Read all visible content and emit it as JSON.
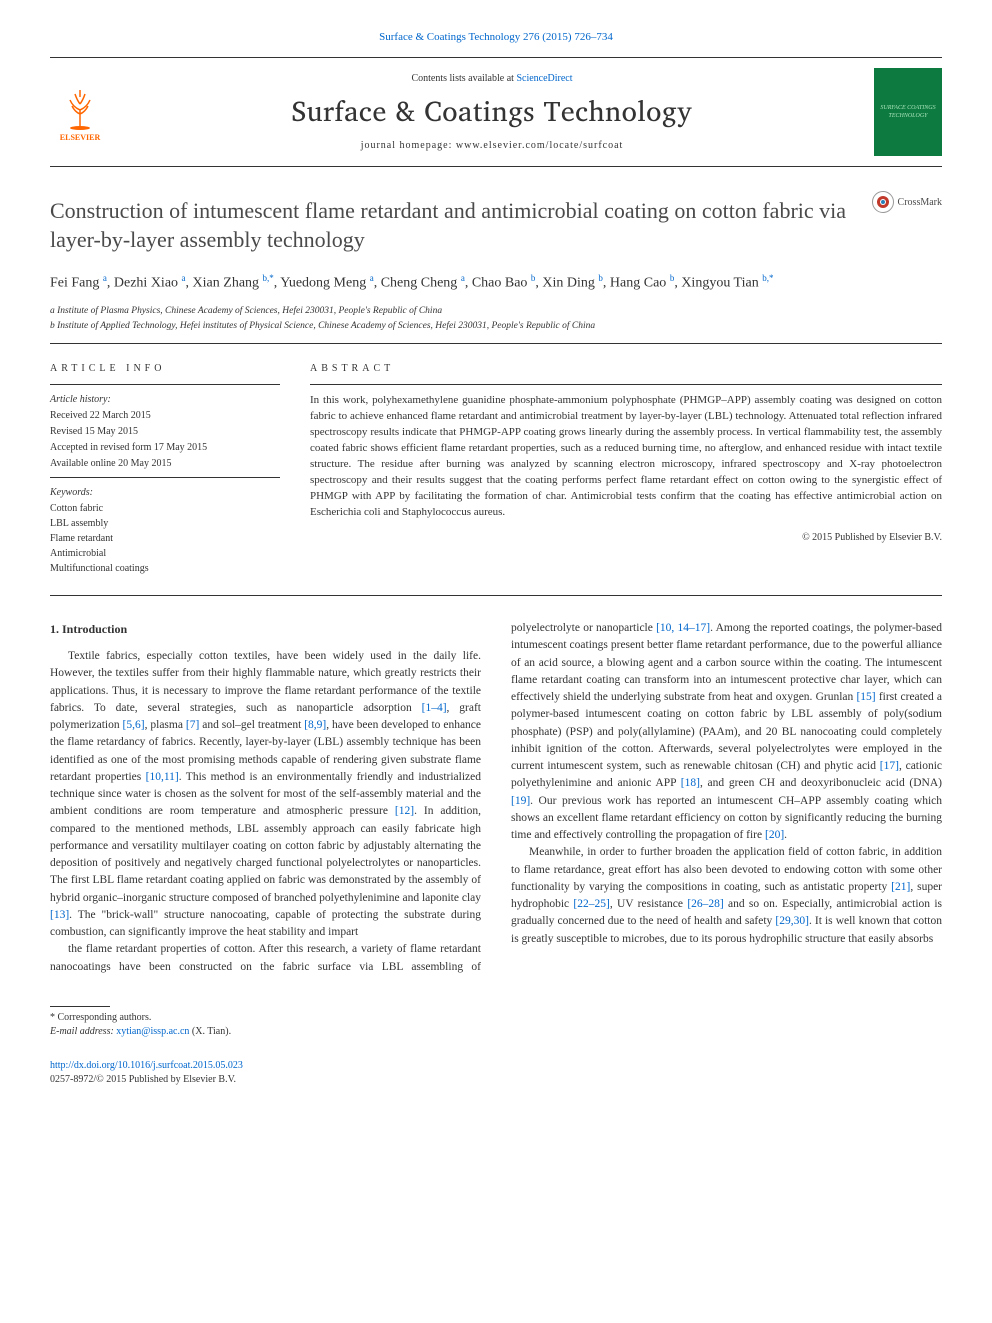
{
  "journal": {
    "top_link_text": "Surface & Coatings Technology 276 (2015) 726–734",
    "contents_line_prefix": "Contents lists available at ",
    "contents_line_link": "ScienceDirect",
    "name": "Surface & Coatings Technology",
    "homepage_prefix": "journal homepage: ",
    "homepage_url": "www.elsevier.com/locate/surfcoat",
    "publisher_label": "ELSEVIER",
    "cover_label": "SURFACE COATINGS TECHNOLOGY"
  },
  "crossmark_label": "CrossMark",
  "article": {
    "title": "Construction of intumescent flame retardant and antimicrobial coating on cotton fabric via layer-by-layer assembly technology",
    "authors_html": "Fei Fang <sup>a</sup>, Dezhi Xiao <sup>a</sup>, Xian Zhang <sup>b,*</sup>, Yuedong Meng <sup>a</sup>, Cheng Cheng <sup>a</sup>, Chao Bao <sup>b</sup>, Xin Ding <sup>b</sup>, Hang Cao <sup>b</sup>, Xingyou Tian <sup>b,*</sup>",
    "affiliations": [
      "a Institute of Plasma Physics, Chinese Academy of Sciences, Hefei 230031, People's Republic of China",
      "b Institute of Applied Technology, Hefei institutes of Physical Science, Chinese Academy of Sciences, Hefei 230031, People's Republic of China"
    ]
  },
  "article_info": {
    "heading": "ARTICLE INFO",
    "history_label": "Article history:",
    "history": [
      "Received 22 March 2015",
      "Revised 15 May 2015",
      "Accepted in revised form 17 May 2015",
      "Available online 20 May 2015"
    ],
    "keywords_label": "Keywords:",
    "keywords": [
      "Cotton fabric",
      "LBL assembly",
      "Flame retardant",
      "Antimicrobial",
      "Multifunctional coatings"
    ]
  },
  "abstract": {
    "heading": "ABSTRACT",
    "text": "In this work, polyhexamethylene guanidine phosphate-ammonium polyphosphate (PHMGP–APP) assembly coating was designed on cotton fabric to achieve enhanced flame retardant and antimicrobial treatment by layer-by-layer (LBL) technology. Attenuated total reflection infrared spectroscopy results indicate that PHMGP-APP coating grows linearly during the assembly process. In vertical flammability test, the assembly coated fabric shows efficient flame retardant properties, such as a reduced burning time, no afterglow, and enhanced residue with intact textile structure. The residue after burning was analyzed by scanning electron microscopy, infrared spectroscopy and X-ray photoelectron spectroscopy and their results suggest that the coating performs perfect flame retardant effect on cotton owing to the synergistic effect of PHMGP with APP by facilitating the formation of char. Antimicrobial tests confirm that the coating has effective antimicrobial action on Escherichia coli and Staphylococcus aureus.",
    "copyright": "© 2015 Published by Elsevier B.V."
  },
  "body": {
    "section_heading": "1. Introduction",
    "p1": "Textile fabrics, especially cotton textiles, have been widely used in the daily life. However, the textiles suffer from their highly flammable nature, which greatly restricts their applications. Thus, it is necessary to improve the flame retardant performance of the textile fabrics. To date, several strategies, such as nanoparticle adsorption [1–4], graft polymerization [5,6], plasma [7] and sol–gel treatment [8,9], have been developed to enhance the flame retardancy of fabrics. Recently, layer-by-layer (LBL) assembly technique has been identified as one of the most promising methods capable of rendering given substrate flame retardant properties [10,11]. This method is an environmentally friendly and industrialized technique since water is chosen as the solvent for most of the self-assembly material and the ambient conditions are room temperature and atmospheric pressure [12]. In addition, compared to the mentioned methods, LBL assembly approach can easily fabricate high performance and versatility multilayer coating on cotton fabric by adjustably alternating the deposition of positively and negatively charged functional polyelectrolytes or nanoparticles. The first LBL flame retardant coating applied on fabric was demonstrated by the assembly of hybrid organic–inorganic structure composed of branched polyethylenimine and laponite clay [13]. The \"brick-wall\" structure nanocoating, capable of protecting the substrate during combustion, can significantly improve the heat stability and impart",
    "p2": "the flame retardant properties of cotton. After this research, a variety of flame retardant nanocoatings have been constructed on the fabric surface via LBL assembling of polyelectrolyte or nanoparticle [10, 14–17]. Among the reported coatings, the polymer-based intumescent coatings present better flame retardant performance, due to the powerful alliance of an acid source, a blowing agent and a carbon source within the coating. The intumescent flame retardant coating can transform into an intumescent protective char layer, which can effectively shield the underlying substrate from heat and oxygen. Grunlan [15] first created a polymer-based intumescent coating on cotton fabric by LBL assembly of poly(sodium phosphate) (PSP) and poly(allylamine) (PAAm), and 20 BL nanocoating could completely inhibit ignition of the cotton. Afterwards, several polyelectrolytes were employed in the current intumescent system, such as renewable chitosan (CH) and phytic acid [17], cationic polyethylenimine and anionic APP [18], and green CH and deoxyribonucleic acid (DNA) [19]. Our previous work has reported an intumescent CH–APP assembly coating which shows an excellent flame retardant efficiency on cotton by significantly reducing the burning time and effectively controlling the propagation of fire [20].",
    "p3": "Meanwhile, in order to further broaden the application field of cotton fabric, in addition to flame retardance, great effort has also been devoted to endowing cotton with some other functionality by varying the compositions in coating, such as antistatic property [21], super hydrophobic [22–25], UV resistance [26–28] and so on. Especially, antimicrobial action is gradually concerned due to the need of health and safety [29,30]. It is well known that cotton is greatly susceptible to microbes, due to its porous hydrophilic structure that easily absorbs"
  },
  "footer": {
    "corr_label": "* Corresponding authors.",
    "email_label": "E-mail address: ",
    "email": "xytian@issp.ac.cn",
    "email_name": " (X. Tian).",
    "doi": "http://dx.doi.org/10.1016/j.surfcoat.2015.05.023",
    "issn": "0257-8972/© 2015 Published by Elsevier B.V."
  },
  "colors": {
    "link": "#0066cc",
    "text": "#333333",
    "elsevier_orange": "#ff6600",
    "cover_green": "#0d7a3f",
    "cover_text": "#a8e4b8"
  }
}
